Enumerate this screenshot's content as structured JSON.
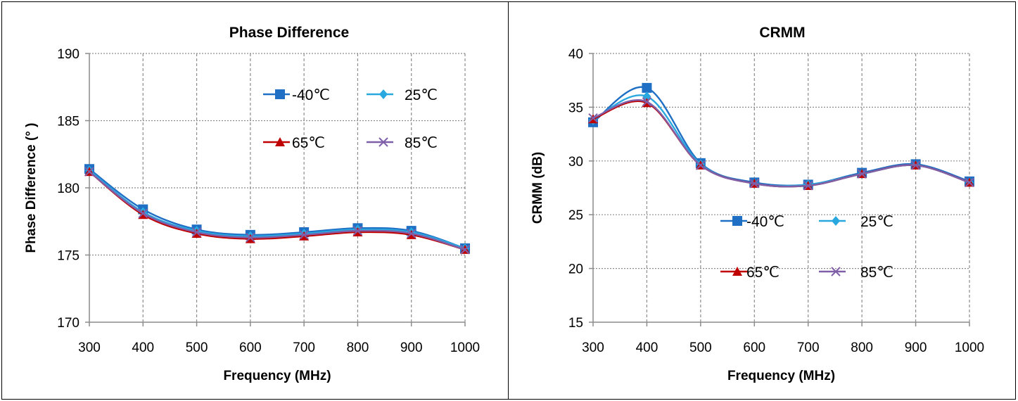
{
  "chart_data": [
    {
      "type": "line",
      "title": "Phase Difference",
      "xlabel": "Frequency (MHz)",
      "ylabel": "Phase Difference (° )",
      "x": [
        300,
        400,
        500,
        600,
        700,
        800,
        900,
        1000
      ],
      "xlim": [
        300,
        1000
      ],
      "ylim": [
        170,
        190
      ],
      "yticks": [
        170,
        175,
        180,
        185,
        190
      ],
      "grid": true,
      "legend_position": "upper-right inside plot",
      "series": [
        {
          "name": "-40℃",
          "color": "#1f6fc5",
          "marker": "square",
          "values": [
            181.4,
            178.4,
            176.9,
            176.5,
            176.7,
            177.0,
            176.8,
            175.5
          ]
        },
        {
          "name": "25℃",
          "color": "#29a8e0",
          "marker": "diamond",
          "values": [
            181.3,
            178.2,
            176.8,
            176.4,
            176.6,
            176.9,
            176.7,
            175.5
          ]
        },
        {
          "name": "65℃",
          "color": "#c00000",
          "marker": "triangle",
          "values": [
            181.2,
            178.0,
            176.6,
            176.2,
            176.4,
            176.7,
            176.5,
            175.4
          ]
        },
        {
          "name": "85℃",
          "color": "#7f5fa8",
          "marker": "x",
          "values": [
            181.2,
            178.1,
            176.7,
            176.3,
            176.5,
            176.8,
            176.6,
            175.4
          ]
        }
      ]
    },
    {
      "type": "line",
      "title": "CRMM",
      "xlabel": "Frequency (MHz)",
      "ylabel": "CRMM (dB)",
      "x": [
        300,
        400,
        500,
        600,
        700,
        800,
        900,
        1000
      ],
      "xlim": [
        300,
        1000
      ],
      "ylim": [
        15,
        40
      ],
      "yticks": [
        15,
        20,
        25,
        30,
        35,
        40
      ],
      "grid": true,
      "legend_position": "center inside plot",
      "series": [
        {
          "name": "-40℃",
          "color": "#1f6fc5",
          "marker": "square",
          "values": [
            33.6,
            36.8,
            29.8,
            28.0,
            27.8,
            28.9,
            29.7,
            28.1
          ]
        },
        {
          "name": "25℃",
          "color": "#29a8e0",
          "marker": "diamond",
          "values": [
            33.8,
            36.0,
            29.7,
            27.9,
            27.8,
            28.8,
            29.6,
            28.0
          ]
        },
        {
          "name": "65℃",
          "color": "#c00000",
          "marker": "triangle",
          "values": [
            33.9,
            35.4,
            29.6,
            27.9,
            27.7,
            28.8,
            29.6,
            28.0
          ]
        },
        {
          "name": "85℃",
          "color": "#7f5fa8",
          "marker": "x",
          "values": [
            34.0,
            35.5,
            29.6,
            27.9,
            27.7,
            28.8,
            29.6,
            28.0
          ]
        }
      ]
    }
  ]
}
